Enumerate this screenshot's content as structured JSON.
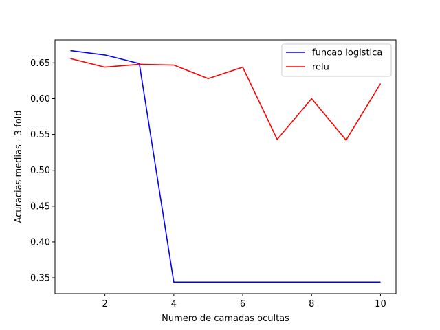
{
  "chart_data": {
    "type": "line",
    "title": "",
    "xlabel": "Numero de camadas ocultas",
    "ylabel": "Acuracias medias - 3 fold",
    "xlim": [
      0.55,
      10.45
    ],
    "ylim": [
      0.328,
      0.682
    ],
    "x": [
      1,
      2,
      3,
      4,
      5,
      6,
      7,
      8,
      9,
      10
    ],
    "xticks": [
      2,
      4,
      6,
      8,
      10
    ],
    "xtick_labels": [
      "2",
      "4",
      "6",
      "8",
      "10"
    ],
    "yticks": [
      0.35,
      0.4,
      0.45,
      0.5,
      0.55,
      0.6,
      0.65
    ],
    "ytick_labels": [
      "0.35",
      "0.40",
      "0.45",
      "0.50",
      "0.55",
      "0.60",
      "0.65"
    ],
    "grid": false,
    "legend_position": "top-right",
    "series": [
      {
        "name": "funcao logistica",
        "color": "#0000ff",
        "values": [
          0.667,
          0.661,
          0.649,
          0.344,
          0.344,
          0.344,
          0.344,
          0.344,
          0.344,
          0.344
        ]
      },
      {
        "name": "relu",
        "color": "#ff0000",
        "values": [
          0.656,
          0.644,
          0.648,
          0.647,
          0.628,
          0.644,
          0.543,
          0.6,
          0.542,
          0.621
        ]
      }
    ]
  }
}
